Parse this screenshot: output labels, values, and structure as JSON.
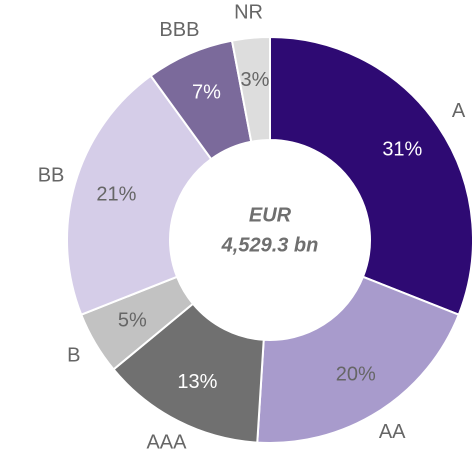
{
  "chart_data": {
    "type": "donut",
    "center_label": [
      "EUR",
      "4,529.3 bn"
    ],
    "categories": [
      "A",
      "AA",
      "AAA",
      "B",
      "BB",
      "BBB",
      "NR"
    ],
    "values": [
      31,
      20,
      13,
      5,
      21,
      7,
      3
    ],
    "value_labels": [
      "31%",
      "20%",
      "13%",
      "5%",
      "21%",
      "7%",
      "3%"
    ],
    "colors": [
      "#2e0a73",
      "#a89bcc",
      "#707070",
      "#c2c2c2",
      "#d5cde8",
      "#7b6a9b",
      "#dddddd"
    ]
  }
}
